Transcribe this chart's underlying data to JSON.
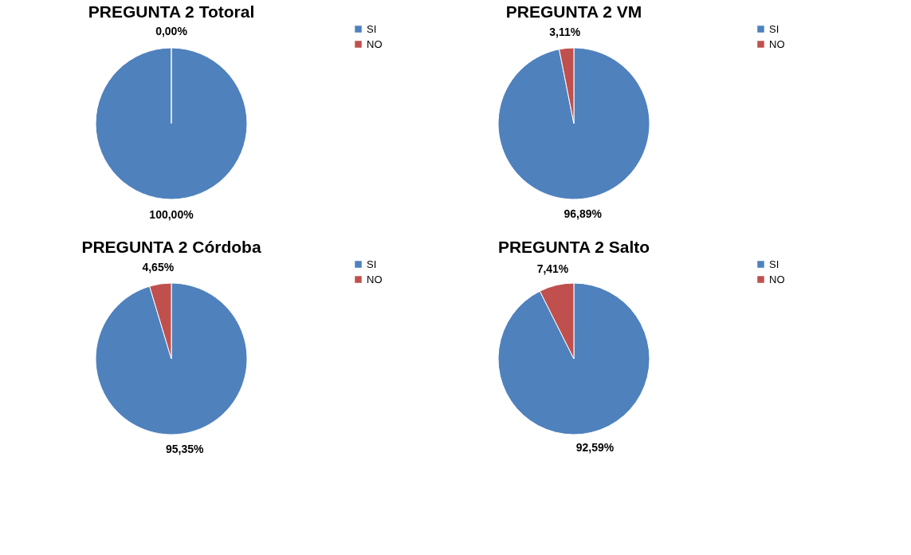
{
  "chart_data": [
    {
      "type": "pie",
      "title": "PREGUNTA 2 Totoral",
      "categories": [
        "SI",
        "NO"
      ],
      "values": [
        100,
        0
      ],
      "value_labels": [
        "100,00%",
        "0,00%"
      ],
      "colors": [
        "#4f81bd",
        "#c0504d"
      ],
      "legend": "right"
    },
    {
      "type": "pie",
      "title": "PREGUNTA 2 VM",
      "categories": [
        "SI",
        "NO"
      ],
      "values": [
        96.89,
        3.11
      ],
      "value_labels": [
        "96,89%",
        "3,11%"
      ],
      "colors": [
        "#4f81bd",
        "#c0504d"
      ],
      "legend": "right"
    },
    {
      "type": "pie",
      "title": "PREGUNTA 2 Córdoba",
      "categories": [
        "SI",
        "NO"
      ],
      "values": [
        95.35,
        4.65
      ],
      "value_labels": [
        "95,35%",
        "4,65%"
      ],
      "colors": [
        "#4f81bd",
        "#c0504d"
      ],
      "legend": "right"
    },
    {
      "type": "pie",
      "title": "PREGUNTA 2 Salto",
      "categories": [
        "SI",
        "NO"
      ],
      "values": [
        92.59,
        7.41
      ],
      "value_labels": [
        "92,59%",
        "7,41%"
      ],
      "colors": [
        "#4f81bd",
        "#c0504d"
      ],
      "legend": "right"
    }
  ]
}
